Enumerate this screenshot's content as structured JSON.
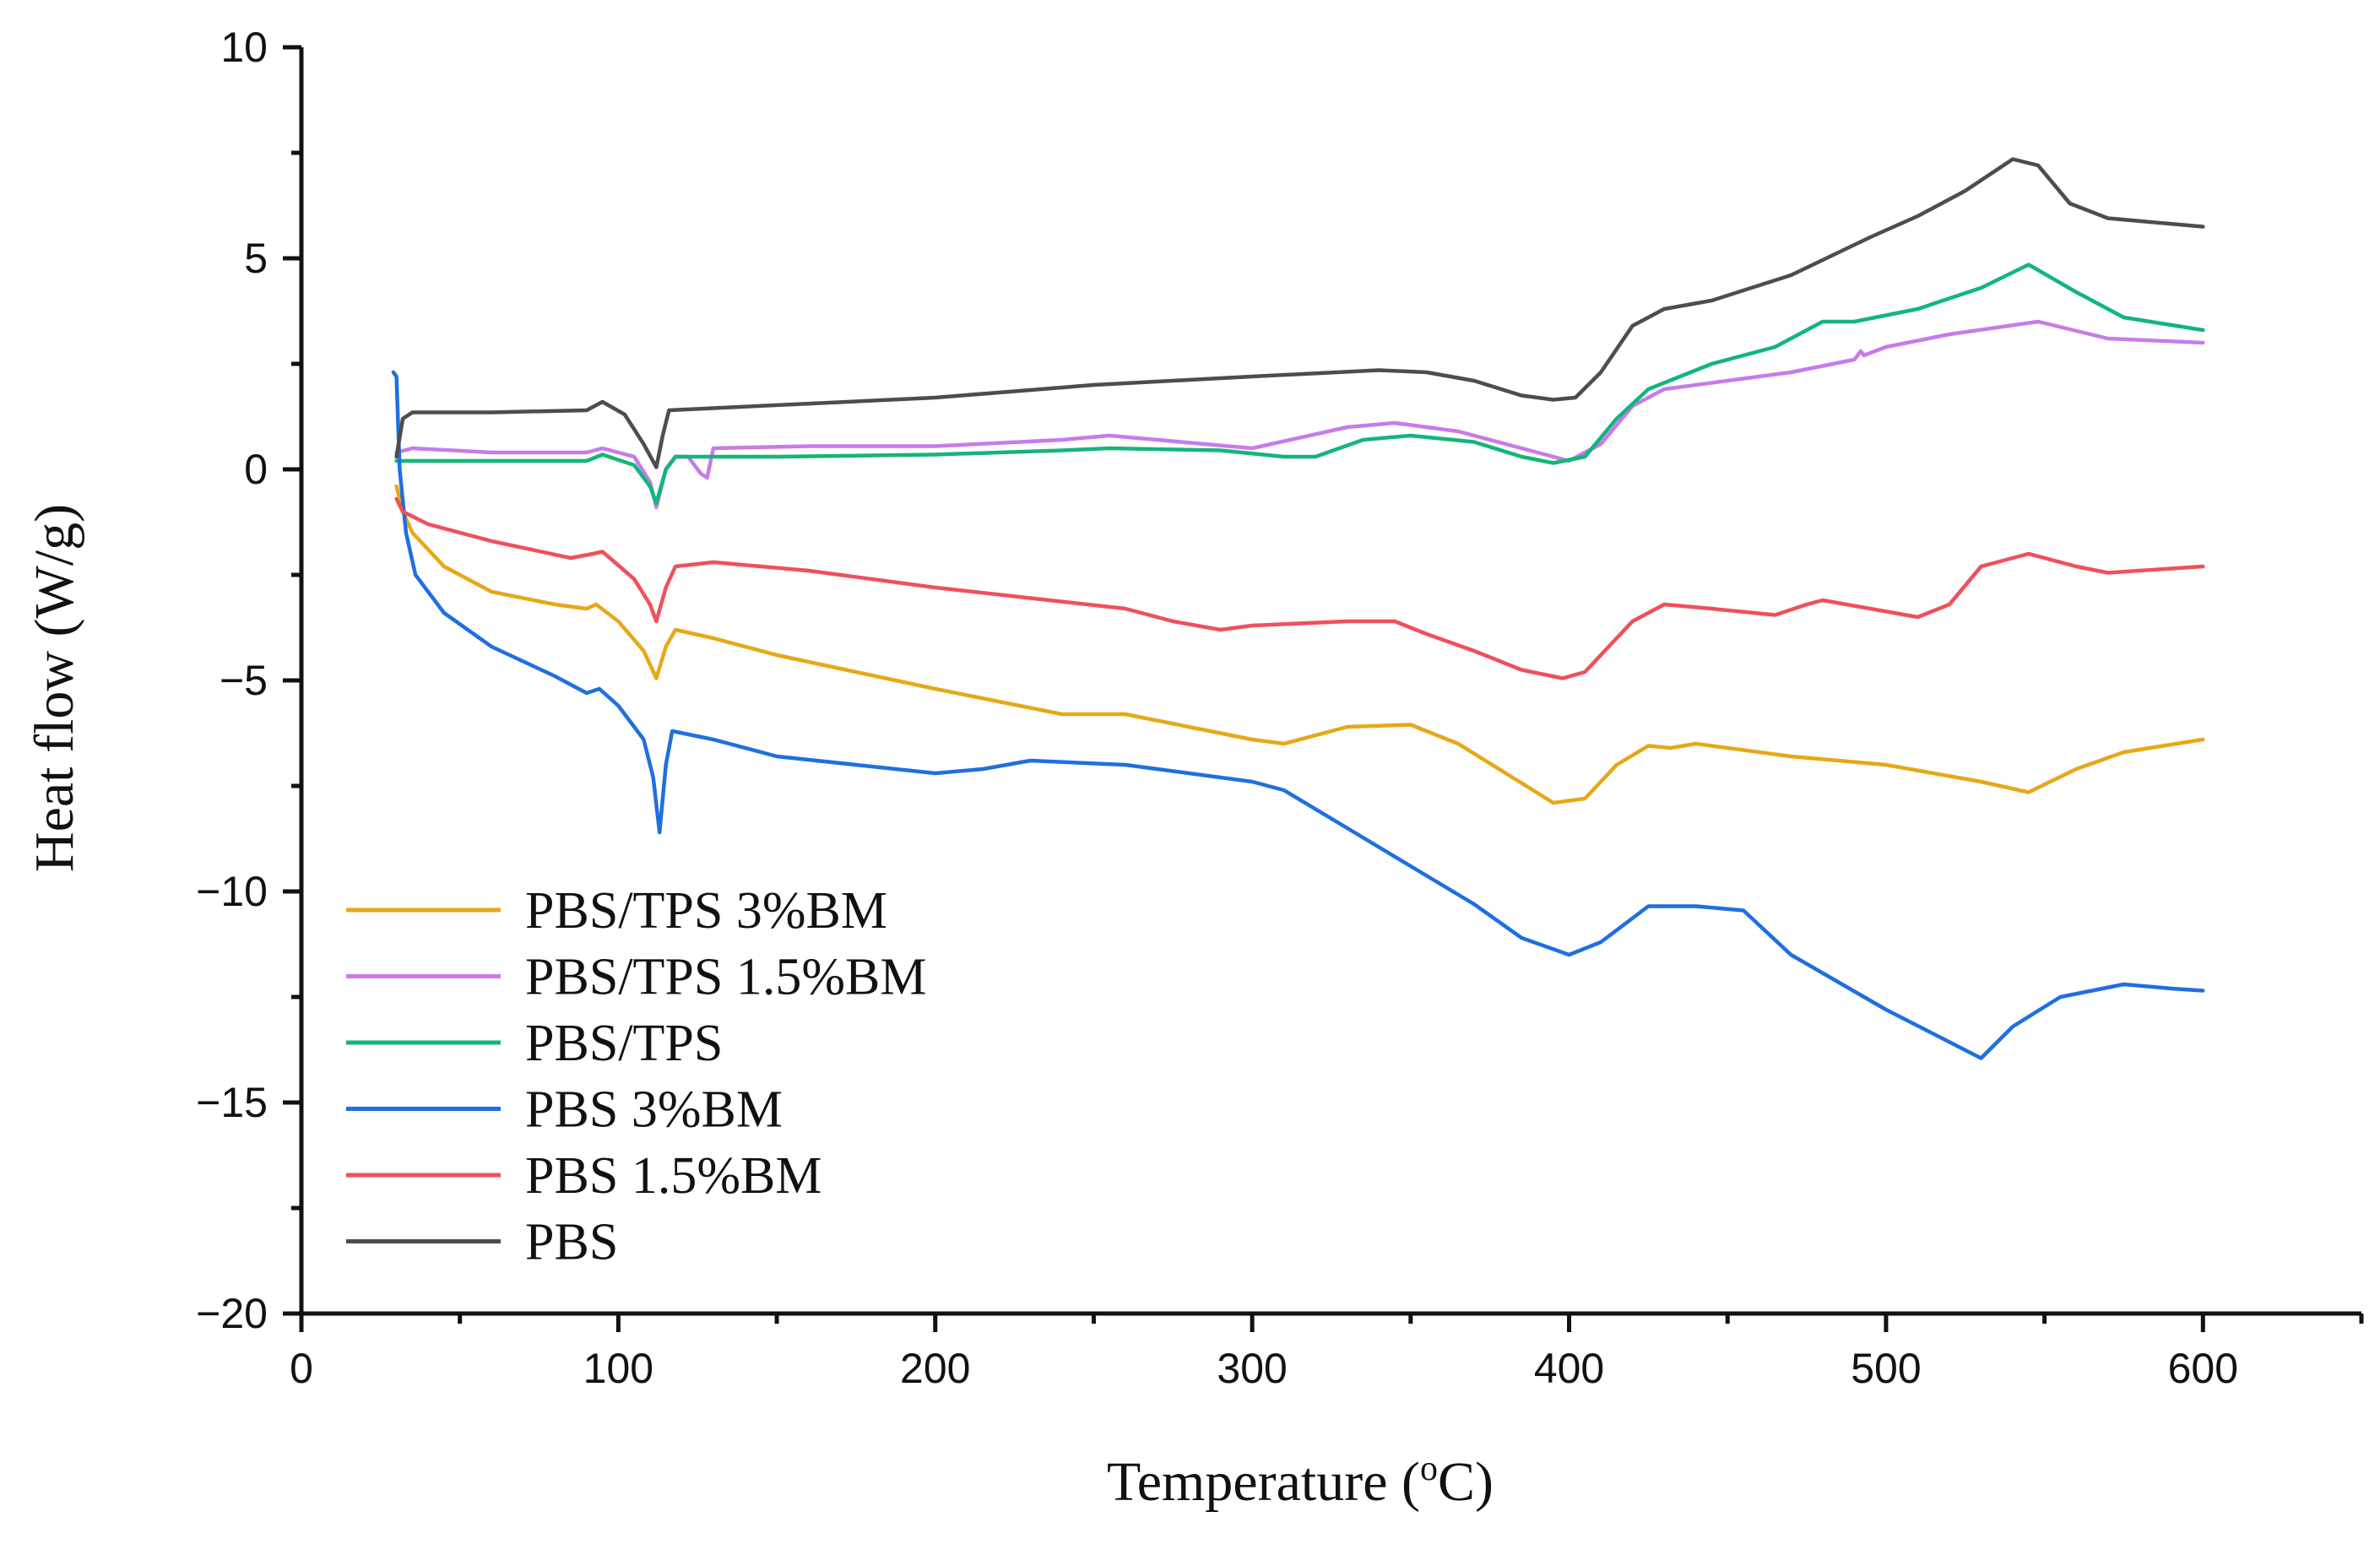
{
  "chart_data": {
    "type": "line",
    "title": "",
    "xlabel": "Temperature (",
    "xlabel_superscript": "o",
    "xlabel_suffix": "C)",
    "ylabel": "Heat flow (W/g)",
    "xlim": [
      0,
      650
    ],
    "ylim": [
      -20,
      10
    ],
    "xticks": [
      0,
      100,
      200,
      300,
      400,
      500,
      600
    ],
    "xtick_labels": [
      "0",
      "100",
      "200",
      "300",
      "400",
      "500",
      "600"
    ],
    "yticks": [
      10,
      5,
      0,
      -5,
      -10,
      -15,
      -20
    ],
    "ytick_labels": [
      "10",
      "5",
      "0",
      "−5",
      "−10",
      "−15",
      "−20"
    ],
    "grid": false,
    "legend_position": "bottom-left",
    "series": [
      {
        "name": "PBS/TPS 3%BM",
        "color": "#E6A817",
        "points": [
          [
            30,
            -0.4
          ],
          [
            32,
            -1.0
          ],
          [
            35,
            -1.5
          ],
          [
            45,
            -2.3
          ],
          [
            60,
            -2.9
          ],
          [
            80,
            -3.2
          ],
          [
            90,
            -3.3
          ],
          [
            93,
            -3.2
          ],
          [
            100,
            -3.6
          ],
          [
            108,
            -4.3
          ],
          [
            112,
            -4.95
          ],
          [
            115,
            -4.2
          ],
          [
            118,
            -3.8
          ],
          [
            130,
            -4.0
          ],
          [
            150,
            -4.4
          ],
          [
            200,
            -5.2
          ],
          [
            240,
            -5.8
          ],
          [
            260,
            -5.8
          ],
          [
            300,
            -6.4
          ],
          [
            310,
            -6.5
          ],
          [
            330,
            -6.1
          ],
          [
            350,
            -6.05
          ],
          [
            365,
            -6.5
          ],
          [
            380,
            -7.2
          ],
          [
            395,
            -7.9
          ],
          [
            405,
            -7.8
          ],
          [
            415,
            -7.0
          ],
          [
            425,
            -6.55
          ],
          [
            432,
            -6.6
          ],
          [
            440,
            -6.5
          ],
          [
            470,
            -6.8
          ],
          [
            500,
            -7.0
          ],
          [
            530,
            -7.4
          ],
          [
            545,
            -7.65
          ],
          [
            560,
            -7.1
          ],
          [
            575,
            -6.7
          ],
          [
            600,
            -6.4
          ]
        ]
      },
      {
        "name": "PBS/TPS 1.5%BM",
        "color": "#C77BEB",
        "points": [
          [
            30,
            0.4
          ],
          [
            35,
            0.5
          ],
          [
            60,
            0.4
          ],
          [
            90,
            0.4
          ],
          [
            95,
            0.5
          ],
          [
            105,
            0.3
          ],
          [
            110,
            -0.3
          ],
          [
            112,
            -0.9
          ],
          [
            115,
            0.0
          ],
          [
            118,
            0.3
          ],
          [
            122,
            0.3
          ],
          [
            126,
            -0.1
          ],
          [
            128,
            -0.2
          ],
          [
            130,
            0.5
          ],
          [
            160,
            0.55
          ],
          [
            200,
            0.55
          ],
          [
            240,
            0.7
          ],
          [
            255,
            0.8
          ],
          [
            270,
            0.7
          ],
          [
            300,
            0.5
          ],
          [
            330,
            1.0
          ],
          [
            345,
            1.1
          ],
          [
            365,
            0.9
          ],
          [
            385,
            0.5
          ],
          [
            400,
            0.2
          ],
          [
            410,
            0.6
          ],
          [
            420,
            1.5
          ],
          [
            430,
            1.9
          ],
          [
            450,
            2.1
          ],
          [
            470,
            2.3
          ],
          [
            490,
            2.6
          ],
          [
            492,
            2.8
          ],
          [
            493,
            2.7
          ],
          [
            500,
            2.9
          ],
          [
            520,
            3.2
          ],
          [
            548,
            3.5
          ],
          [
            570,
            3.1
          ],
          [
            600,
            3.0
          ]
        ]
      },
      {
        "name": "PBS/TPS",
        "color": "#14B57A",
        "points": [
          [
            30,
            0.2
          ],
          [
            35,
            0.2
          ],
          [
            60,
            0.2
          ],
          [
            90,
            0.2
          ],
          [
            95,
            0.35
          ],
          [
            105,
            0.1
          ],
          [
            110,
            -0.4
          ],
          [
            112,
            -0.8
          ],
          [
            115,
            0.0
          ],
          [
            118,
            0.3
          ],
          [
            130,
            0.3
          ],
          [
            150,
            0.3
          ],
          [
            200,
            0.35
          ],
          [
            240,
            0.45
          ],
          [
            255,
            0.5
          ],
          [
            290,
            0.45
          ],
          [
            310,
            0.3
          ],
          [
            320,
            0.3
          ],
          [
            335,
            0.7
          ],
          [
            350,
            0.8
          ],
          [
            370,
            0.65
          ],
          [
            385,
            0.3
          ],
          [
            395,
            0.15
          ],
          [
            405,
            0.3
          ],
          [
            415,
            1.2
          ],
          [
            425,
            1.9
          ],
          [
            445,
            2.5
          ],
          [
            465,
            2.9
          ],
          [
            480,
            3.5
          ],
          [
            490,
            3.5
          ],
          [
            510,
            3.8
          ],
          [
            530,
            4.3
          ],
          [
            545,
            4.85
          ],
          [
            560,
            4.2
          ],
          [
            575,
            3.6
          ],
          [
            600,
            3.3
          ]
        ]
      },
      {
        "name": "PBS 3%BM",
        "color": "#1F6FE0",
        "points": [
          [
            29,
            2.3
          ],
          [
            30,
            2.2
          ],
          [
            31,
            0.0
          ],
          [
            33,
            -1.5
          ],
          [
            36,
            -2.5
          ],
          [
            45,
            -3.4
          ],
          [
            60,
            -4.2
          ],
          [
            80,
            -4.9
          ],
          [
            90,
            -5.3
          ],
          [
            94,
            -5.2
          ],
          [
            100,
            -5.6
          ],
          [
            108,
            -6.4
          ],
          [
            111,
            -7.3
          ],
          [
            113,
            -8.6
          ],
          [
            115,
            -7.0
          ],
          [
            117,
            -6.2
          ],
          [
            130,
            -6.4
          ],
          [
            150,
            -6.8
          ],
          [
            200,
            -7.2
          ],
          [
            215,
            -7.1
          ],
          [
            230,
            -6.9
          ],
          [
            260,
            -7.0
          ],
          [
            300,
            -7.4
          ],
          [
            310,
            -7.6
          ],
          [
            330,
            -8.5
          ],
          [
            350,
            -9.4
          ],
          [
            370,
            -10.3
          ],
          [
            385,
            -11.1
          ],
          [
            400,
            -11.5
          ],
          [
            410,
            -11.2
          ],
          [
            425,
            -10.35
          ],
          [
            440,
            -10.35
          ],
          [
            455,
            -10.45
          ],
          [
            470,
            -11.5
          ],
          [
            500,
            -12.8
          ],
          [
            530,
            -13.95
          ],
          [
            540,
            -13.2
          ],
          [
            555,
            -12.5
          ],
          [
            575,
            -12.2
          ],
          [
            590,
            -12.3
          ],
          [
            600,
            -12.35
          ]
        ]
      },
      {
        "name": "PBS 1.5%BM",
        "color": "#F0505A",
        "points": [
          [
            30,
            -0.7
          ],
          [
            32,
            -1.0
          ],
          [
            40,
            -1.3
          ],
          [
            60,
            -1.7
          ],
          [
            85,
            -2.1
          ],
          [
            92,
            -2.0
          ],
          [
            95,
            -1.95
          ],
          [
            105,
            -2.6
          ],
          [
            110,
            -3.2
          ],
          [
            112,
            -3.6
          ],
          [
            115,
            -2.8
          ],
          [
            118,
            -2.3
          ],
          [
            130,
            -2.2
          ],
          [
            160,
            -2.4
          ],
          [
            200,
            -2.8
          ],
          [
            260,
            -3.3
          ],
          [
            275,
            -3.6
          ],
          [
            290,
            -3.8
          ],
          [
            300,
            -3.7
          ],
          [
            330,
            -3.6
          ],
          [
            345,
            -3.6
          ],
          [
            355,
            -3.9
          ],
          [
            370,
            -4.3
          ],
          [
            385,
            -4.75
          ],
          [
            398,
            -4.95
          ],
          [
            405,
            -4.8
          ],
          [
            420,
            -3.6
          ],
          [
            430,
            -3.2
          ],
          [
            445,
            -3.3
          ],
          [
            465,
            -3.45
          ],
          [
            475,
            -3.2
          ],
          [
            480,
            -3.1
          ],
          [
            495,
            -3.3
          ],
          [
            510,
            -3.5
          ],
          [
            520,
            -3.2
          ],
          [
            530,
            -2.3
          ],
          [
            545,
            -2.0
          ],
          [
            560,
            -2.3
          ],
          [
            570,
            -2.45
          ],
          [
            600,
            -2.3
          ]
        ]
      },
      {
        "name": "PBS",
        "color": "#4D4D4D",
        "points": [
          [
            30,
            0.3
          ],
          [
            32,
            1.2
          ],
          [
            35,
            1.35
          ],
          [
            60,
            1.35
          ],
          [
            90,
            1.4
          ],
          [
            95,
            1.6
          ],
          [
            102,
            1.3
          ],
          [
            108,
            0.6
          ],
          [
            112,
            0.05
          ],
          [
            114,
            0.8
          ],
          [
            116,
            1.4
          ],
          [
            130,
            1.45
          ],
          [
            200,
            1.7
          ],
          [
            250,
            2.0
          ],
          [
            300,
            2.2
          ],
          [
            340,
            2.35
          ],
          [
            355,
            2.3
          ],
          [
            370,
            2.1
          ],
          [
            385,
            1.75
          ],
          [
            395,
            1.65
          ],
          [
            402,
            1.7
          ],
          [
            410,
            2.3
          ],
          [
            420,
            3.4
          ],
          [
            430,
            3.8
          ],
          [
            445,
            4.0
          ],
          [
            470,
            4.6
          ],
          [
            495,
            5.5
          ],
          [
            510,
            6.0
          ],
          [
            525,
            6.6
          ],
          [
            540,
            7.35
          ],
          [
            548,
            7.2
          ],
          [
            558,
            6.3
          ],
          [
            570,
            5.95
          ],
          [
            600,
            5.75
          ]
        ]
      }
    ]
  }
}
